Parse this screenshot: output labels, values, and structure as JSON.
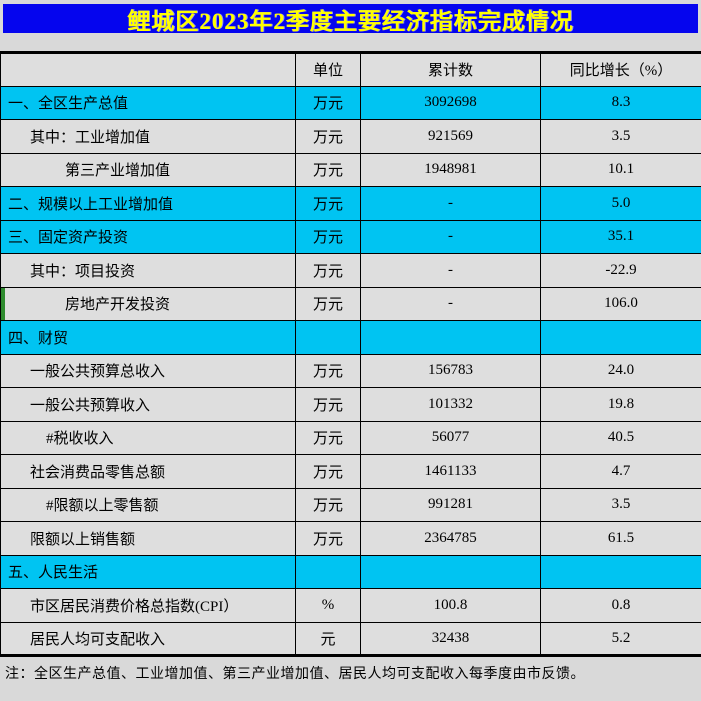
{
  "page_title": "鲤城区2023年2季度主要经济指标完成情况",
  "colors": {
    "page_bg": "#D9D9D9",
    "title_bg": "#0505EE",
    "title_text": "#FFFF00",
    "highlight_row": "#00C4F2",
    "row_bg": "#DEDEDE",
    "grid": "#000000",
    "left_marker": "#2E8B2E",
    "body_text": "#000000"
  },
  "table": {
    "columns": [
      "",
      "单位",
      "累计数",
      "同比增长（%）"
    ],
    "rows": [
      {
        "indicator": "一、全区生产总值",
        "unit": "万元",
        "value": "3092698",
        "growth": "8.3",
        "highlight": true,
        "indent": 0
      },
      {
        "indicator": "其中：工业增加值",
        "unit": "万元",
        "value": "921569",
        "growth": "3.5",
        "highlight": false,
        "indent": 1
      },
      {
        "indicator": "第三产业增加值",
        "unit": "万元",
        "value": "1948981",
        "growth": "10.1",
        "highlight": false,
        "indent": 2
      },
      {
        "indicator": "二、规模以上工业增加值",
        "unit": "万元",
        "value": "-",
        "growth": "5.0",
        "highlight": true,
        "indent": 0
      },
      {
        "indicator": "三、固定资产投资",
        "unit": "万元",
        "value": "-",
        "growth": "35.1",
        "highlight": true,
        "indent": 0
      },
      {
        "indicator": "其中：项目投资",
        "unit": "万元",
        "value": "-",
        "growth": "-22.9",
        "highlight": false,
        "indent": 1
      },
      {
        "indicator": "房地产开发投资",
        "unit": "万元",
        "value": "-",
        "growth": "106.0",
        "highlight": false,
        "indent": 2,
        "left_marker": true
      },
      {
        "indicator": "四、财贸",
        "unit": "",
        "value": "",
        "growth": "",
        "highlight": true,
        "indent": 0
      },
      {
        "indicator": "一般公共预算总收入",
        "unit": "万元",
        "value": "156783",
        "growth": "24.0",
        "highlight": false,
        "indent": 1
      },
      {
        "indicator": "一般公共预算收入",
        "unit": "万元",
        "value": "101332",
        "growth": "19.8",
        "highlight": false,
        "indent": 1
      },
      {
        "indicator": "#税收收入",
        "unit": "万元",
        "value": "56077",
        "growth": "40.5",
        "highlight": false,
        "indent": 1.5
      },
      {
        "indicator": "社会消费品零售总额",
        "unit": "万元",
        "value": "1461133",
        "growth": "4.7",
        "highlight": false,
        "indent": 1
      },
      {
        "indicator": "#限额以上零售额",
        "unit": "万元",
        "value": "991281",
        "growth": "3.5",
        "highlight": false,
        "indent": 1.5
      },
      {
        "indicator": "限额以上销售额",
        "unit": "万元",
        "value": "2364785",
        "growth": "61.5",
        "highlight": false,
        "indent": 1
      },
      {
        "indicator": "五、人民生活",
        "unit": "",
        "value": "",
        "growth": "",
        "highlight": true,
        "indent": 0
      },
      {
        "indicator": "市区居民消费价格总指数(CPI）",
        "unit": "%",
        "value": "100.8",
        "growth": "0.8",
        "highlight": false,
        "indent": 1
      },
      {
        "indicator": "居民人均可支配收入",
        "unit": "元",
        "value": "32438",
        "growth": "5.2",
        "highlight": false,
        "indent": 1
      }
    ]
  },
  "footnote": "注：全区生产总值、工业增加值、第三产业增加值、居民人均可支配收入每季度由市反馈。"
}
